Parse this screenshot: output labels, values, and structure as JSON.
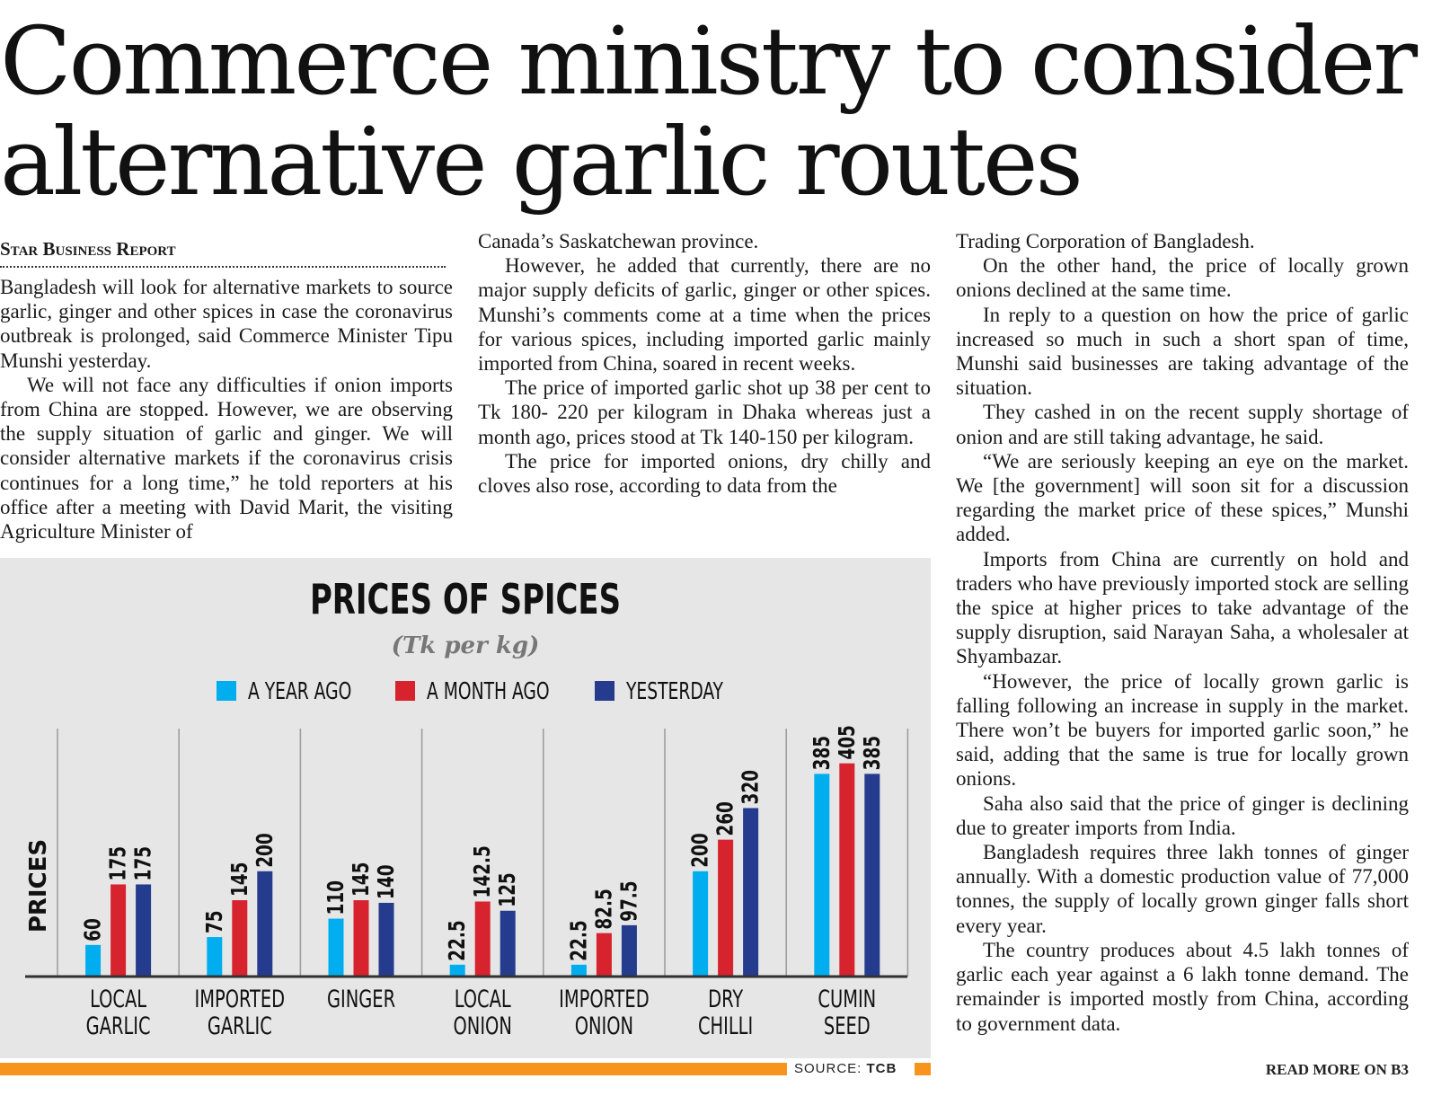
{
  "headline": {
    "line1": "Commerce ministry to consider",
    "line2": "alternative garlic routes"
  },
  "byline": "Star Business Report",
  "column1": [
    "Bangladesh will look for alternative markets to source garlic, ginger and other spices in case the coronavirus outbreak is prolonged, said Commerce Minister Tipu Munshi yesterday.",
    "We will not face any difficulties if onion imports from China are stopped. However, we are observing the supply situation of garlic and ginger. We will consider alternative markets if the coronavirus crisis continues for a long time,” he told reporters at his office after a meeting with David Marit, the visiting Agriculture Minister of"
  ],
  "column2": [
    "Canada’s Saskatchewan province.",
    "However, he added that currently, there are no major supply deficits of garlic, ginger or other spices. Munshi’s comments come at a time when the prices for various spices, including imported garlic mainly imported from China, soared in recent weeks.",
    "The price of imported garlic shot up 38 per cent to Tk 180- 220 per kilogram in Dhaka whereas just a month ago, prices stood at Tk 140-150 per kilogram.",
    "The price for imported onions, dry chilly and cloves also rose, according to data from the"
  ],
  "column3": [
    "Trading Corporation of Bangladesh.",
    "On the other hand, the price of locally grown onions declined at the same time.",
    "In reply to a question on how the price of garlic increased so much in such a short span of time, Munshi said businesses are taking advantage of the situation.",
    "They cashed in on the recent supply shortage of onion and are still taking advantage, he said.",
    "“We are seriously keeping an eye on the market. We [the government] will soon sit for a discussion regarding the market price of these spices,” Munshi added.",
    "Imports from China are currently on hold and traders who have previously imported stock are selling the spice at higher prices to take advantage of the supply disruption, said Narayan Saha, a wholesaler at Shyambazar.",
    "“However, the price of locally grown garlic is falling following an increase in supply in the market. There won’t be buyers for imported garlic soon,” he said, adding that the same is true for locally grown onions.",
    "Saha also said that the price of ginger is declining due to greater imports from India.",
    "Bangladesh requires three lakh tonnes of ginger annually. With a domestic production value of 77,000 tonnes, the supply of locally grown ginger falls short every year.",
    "The country produces about 4.5 lakh tonnes of garlic each year against a 6 lakh tonne demand. The remainder is imported mostly from China, according to government data."
  ],
  "source": {
    "label": "SOURCE:",
    "value": "TCB"
  },
  "read_more": "READ MORE ON B3",
  "colors": {
    "a_year_ago": "#00aeef",
    "a_month_ago": "#d7232e",
    "yesterday": "#253b8e",
    "orange_bar": "#f7941d",
    "chart_bg": "#e6e6e6"
  },
  "chart_data": {
    "type": "bar",
    "title": "PRICES OF SPICES",
    "subtitle": "(Tk per kg)",
    "ylabel": "PRICES",
    "xlabel": "",
    "ylim": [
      0,
      430
    ],
    "grid": false,
    "legend_position": "top-center",
    "categories": [
      [
        "LOCAL",
        "GARLIC"
      ],
      [
        "IMPORTED",
        "GARLIC"
      ],
      [
        "GINGER"
      ],
      [
        "LOCAL",
        "ONION"
      ],
      [
        "IMPORTED",
        "ONION"
      ],
      [
        "DRY",
        "CHILLI"
      ],
      [
        "CUMIN",
        "SEED"
      ]
    ],
    "series": [
      {
        "name": "A YEAR AGO",
        "color": "#00aeef",
        "values": [
          60,
          75,
          110,
          22.5,
          22.5,
          200,
          385
        ]
      },
      {
        "name": "A MONTH AGO",
        "color": "#d7232e",
        "values": [
          175,
          145,
          145,
          142.5,
          82.5,
          260,
          405
        ]
      },
      {
        "name": "YESTERDAY",
        "color": "#253b8e",
        "values": [
          175,
          200,
          140,
          125,
          97.5,
          320,
          385
        ]
      }
    ]
  }
}
